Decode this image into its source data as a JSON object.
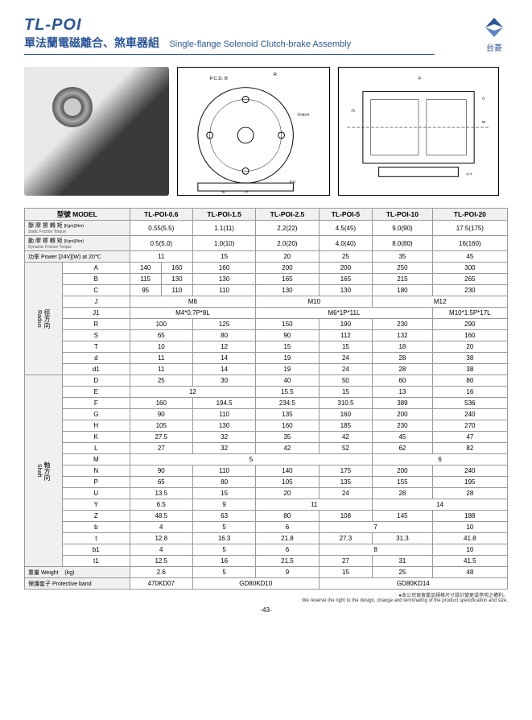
{
  "header": {
    "product_code": "TL-POI",
    "subtitle_cn": "單法蘭電磁離合、煞車器組",
    "subtitle_en": "Single-flange Solenoid Clutch-brake Assembly",
    "logo_text": "台菱"
  },
  "logo_color": "#2a5599",
  "table": {
    "model_label_cn": "型號",
    "model_label_en": "MODEL",
    "models": [
      "TL-POI-0.6",
      "TL-POI-1.5",
      "TL-POI-2.5",
      "TL-POI-5",
      "TL-POI-10",
      "TL-POI-20"
    ],
    "static_friction": {
      "label_cn": "靜 摩 擦 轉 矩",
      "label_unit": "[Kgm](Nm)",
      "label_sub": "Static Friction Torque",
      "values": [
        "0.55(5.5)",
        "1.1(11)",
        "2.2(22)",
        "4.5(45)",
        "9.0(90)",
        "17.5(175)"
      ]
    },
    "dynamic_friction": {
      "label_cn": "動 摩 擦 轉 矩",
      "label_unit": "[Kgm](Nm)",
      "label_sub": "Dynamic Friction Torque",
      "values": [
        "0.5(5.0)",
        "1.0(10)",
        "2.0(20)",
        "4.0(40)",
        "8.0(80)",
        "16(160)"
      ]
    },
    "power": {
      "label": "功率 Power [24V](W) at 20℃",
      "values": [
        "11",
        "15",
        "20",
        "25",
        "35",
        "45"
      ]
    },
    "radius": {
      "group_cn": "徑方向",
      "group_en": "Radius",
      "rows": [
        {
          "k": "A",
          "v": [
            "140",
            "160",
            "160",
            "200",
            "200",
            "250",
            "300"
          ],
          "spans": [
            1,
            1,
            1,
            1,
            1,
            1,
            1
          ]
        },
        {
          "k": "B",
          "v": [
            "115",
            "130",
            "130",
            "165",
            "165",
            "215",
            "265"
          ],
          "spans": [
            1,
            1,
            1,
            1,
            1,
            1,
            1
          ]
        },
        {
          "k": "C",
          "v": [
            "95",
            "110",
            "110",
            "130",
            "130",
            "180",
            "230"
          ],
          "spans": [
            1,
            1,
            1,
            1,
            1,
            1,
            1
          ]
        },
        {
          "k": "J",
          "v": [
            "M8",
            "M10",
            "M12"
          ],
          "spans": [
            3,
            2,
            2
          ]
        },
        {
          "k": "J1",
          "v": [
            "M4*0.7P*8L",
            "M6*1P*11L",
            "M10*1.5P*17L"
          ],
          "spans": [
            3,
            3,
            1
          ]
        },
        {
          "k": "R",
          "v": [
            "100",
            "125",
            "150",
            "190",
            "230",
            "290"
          ],
          "spans": [
            2,
            1,
            1,
            1,
            1,
            1
          ]
        },
        {
          "k": "S",
          "v": [
            "65",
            "80",
            "90",
            "112",
            "132",
            "160"
          ],
          "spans": [
            2,
            1,
            1,
            1,
            1,
            1
          ]
        },
        {
          "k": "T",
          "v": [
            "10",
            "12",
            "15",
            "15",
            "18",
            "20"
          ],
          "spans": [
            2,
            1,
            1,
            1,
            1,
            1
          ]
        },
        {
          "k": "d",
          "v": [
            "11",
            "14",
            "19",
            "24",
            "28",
            "38"
          ],
          "spans": [
            2,
            1,
            1,
            1,
            1,
            1
          ]
        },
        {
          "k": "d1",
          "v": [
            "11",
            "14",
            "19",
            "24",
            "28",
            "38"
          ],
          "spans": [
            2,
            1,
            1,
            1,
            1,
            1
          ]
        }
      ]
    },
    "shaft": {
      "group_cn": "軸方向",
      "group_en": "Shaft",
      "rows": [
        {
          "k": "D",
          "v": [
            "25",
            "30",
            "40",
            "50",
            "60",
            "80"
          ],
          "spans": [
            2,
            1,
            1,
            1,
            1,
            1
          ]
        },
        {
          "k": "E",
          "v": [
            "12",
            "15.5",
            "15",
            "13",
            "16"
          ],
          "spans": [
            3,
            1,
            1,
            1,
            1
          ]
        },
        {
          "k": "F",
          "v": [
            "160",
            "194.5",
            "234.5",
            "310.5",
            "389",
            "536"
          ],
          "spans": [
            2,
            1,
            1,
            1,
            1,
            1
          ]
        },
        {
          "k": "G",
          "v": [
            "90",
            "110",
            "135",
            "160",
            "200",
            "240"
          ],
          "spans": [
            2,
            1,
            1,
            1,
            1,
            1
          ]
        },
        {
          "k": "H",
          "v": [
            "105",
            "130",
            "160",
            "185",
            "230",
            "270"
          ],
          "spans": [
            2,
            1,
            1,
            1,
            1,
            1
          ]
        },
        {
          "k": "K",
          "v": [
            "27.5",
            "32",
            "35",
            "42",
            "45",
            "47"
          ],
          "spans": [
            2,
            1,
            1,
            1,
            1,
            1
          ]
        },
        {
          "k": "L",
          "v": [
            "27",
            "32",
            "42",
            "52",
            "62",
            "82"
          ],
          "spans": [
            2,
            1,
            1,
            1,
            1,
            1
          ]
        },
        {
          "k": "M",
          "v": [
            "5",
            "6"
          ],
          "spans": [
            5,
            2
          ]
        },
        {
          "k": "N",
          "v": [
            "90",
            "110",
            "140",
            "175",
            "200",
            "240"
          ],
          "spans": [
            2,
            1,
            1,
            1,
            1,
            1
          ]
        },
        {
          "k": "P",
          "v": [
            "65",
            "80",
            "105",
            "135",
            "155",
            "195"
          ],
          "spans": [
            2,
            1,
            1,
            1,
            1,
            1
          ]
        },
        {
          "k": "U",
          "v": [
            "13.5",
            "15",
            "20",
            "24",
            "28",
            "28"
          ],
          "spans": [
            2,
            1,
            1,
            1,
            1,
            1
          ]
        },
        {
          "k": "Y",
          "v": [
            "6.5",
            "9",
            "11",
            "14"
          ],
          "spans": [
            2,
            1,
            2,
            2
          ]
        },
        {
          "k": "Z",
          "v": [
            "48.5",
            "63",
            "80",
            "108",
            "145",
            "188"
          ],
          "spans": [
            2,
            1,
            1,
            1,
            1,
            1
          ]
        },
        {
          "k": "b",
          "v": [
            "4",
            "5",
            "6",
            "7",
            "10"
          ],
          "spans": [
            2,
            1,
            1,
            2,
            1
          ]
        },
        {
          "k": "t",
          "v": [
            "12.8",
            "16.3",
            "21.8",
            "27.3",
            "31.3",
            "41.8"
          ],
          "spans": [
            2,
            1,
            1,
            1,
            1,
            1
          ]
        },
        {
          "k": "b1",
          "v": [
            "4",
            "5",
            "6",
            "8",
            "10"
          ],
          "spans": [
            2,
            1,
            1,
            2,
            1
          ]
        },
        {
          "k": "t1",
          "v": [
            "12.5",
            "16",
            "21.5",
            "27",
            "31",
            "41.5"
          ],
          "spans": [
            2,
            1,
            1,
            1,
            1,
            1
          ]
        }
      ]
    },
    "weight": {
      "label_cn": "重量",
      "label_en": "Weight",
      "unit": "(kg)",
      "values": [
        "2.6",
        "5",
        "9",
        "15",
        "25",
        "48"
      ],
      "spans": [
        2,
        1,
        1,
        1,
        1,
        1
      ]
    },
    "protective_band": {
      "label_cn": "保護套子",
      "label_en": "Protective band",
      "values": [
        "470KD07",
        "GD80KD10",
        "GD80KD14"
      ],
      "spans": [
        2,
        2,
        3
      ]
    }
  },
  "footer": {
    "line1": "●本公司保留產品規格尺寸設計變更或停用之權利。",
    "line2": "We reserve the right to the design, change and terminating of the product speicification and size.",
    "page": "-43-"
  }
}
